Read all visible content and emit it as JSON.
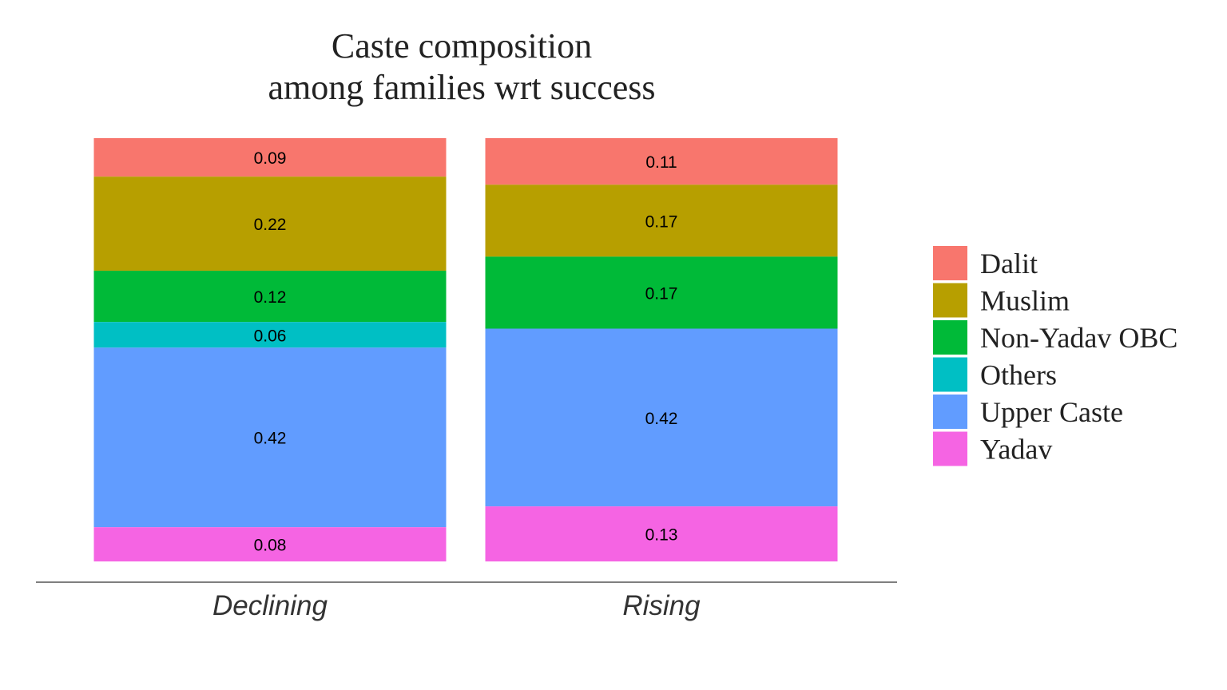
{
  "chart_data": {
    "type": "bar",
    "stacked": true,
    "title_lines": [
      "Caste composition",
      "among families wrt success"
    ],
    "categories": [
      "Declining",
      "Rising"
    ],
    "ylim": [
      0,
      1
    ],
    "grid": false,
    "legend_position": "right",
    "series": [
      {
        "name": "Dalit",
        "color": "#F8766D",
        "values": [
          0.09,
          0.11
        ],
        "labels": [
          "0.09",
          "0.11"
        ]
      },
      {
        "name": "Muslim",
        "color": "#B79F00",
        "values": [
          0.22,
          0.17
        ],
        "labels": [
          "0.22",
          "0.17"
        ]
      },
      {
        "name": "Non-Yadav OBC",
        "color": "#00BA38",
        "values": [
          0.12,
          0.17
        ],
        "labels": [
          "0.12",
          "0.17"
        ]
      },
      {
        "name": "Others",
        "color": "#00BFC4",
        "values": [
          0.06,
          0
        ],
        "labels": [
          "0.06",
          ""
        ]
      },
      {
        "name": "Upper Caste",
        "color": "#619CFF",
        "values": [
          0.42,
          0.42
        ],
        "labels": [
          "0.42",
          "0.42"
        ]
      },
      {
        "name": "Yadav",
        "color": "#F564E3",
        "values": [
          0.08,
          0.13
        ],
        "labels": [
          "0.08",
          "0.13"
        ]
      }
    ]
  }
}
